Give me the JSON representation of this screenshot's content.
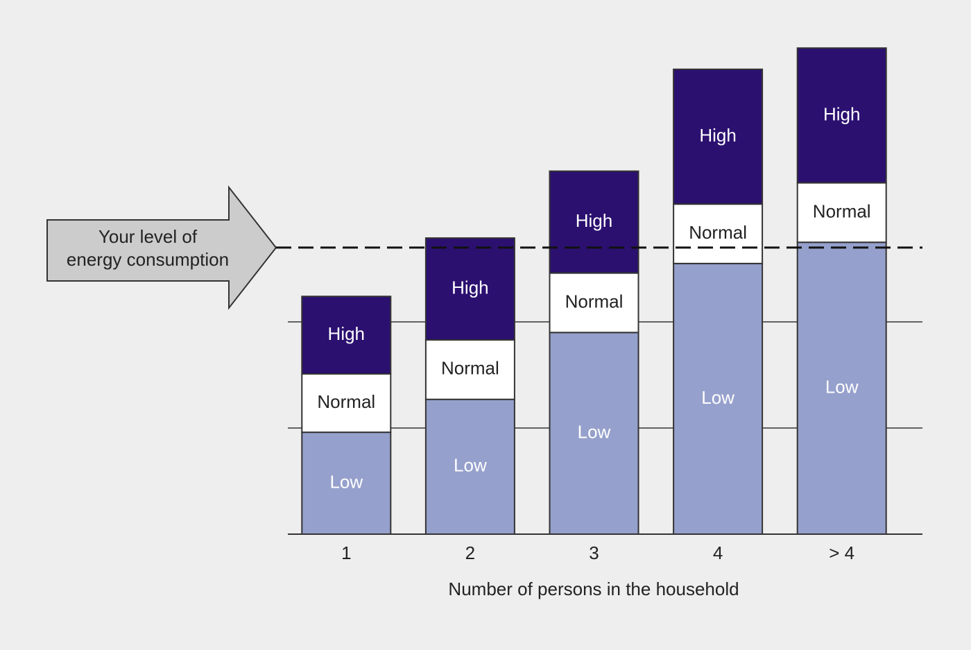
{
  "chart_data": {
    "type": "stacked_bar",
    "categories": [
      "1",
      "2",
      "3",
      "4",
      "> 4"
    ],
    "series": [
      {
        "name": "Low",
        "color": "#96a0cc",
        "label_color": "#ffffff",
        "values": [
          0.96,
          1.27,
          1.9,
          2.55,
          2.75
        ]
      },
      {
        "name": "Normal",
        "color": "#ffffff",
        "label_color": "#222222",
        "values": [
          0.55,
          0.56,
          0.56,
          0.56,
          0.56
        ]
      },
      {
        "name": "High",
        "color": "#2b1070",
        "label_color": "#ffffff",
        "values": [
          0.73,
          0.96,
          0.96,
          1.27,
          1.27
        ]
      }
    ],
    "x_label": "Number of persons in the household",
    "ylim": [
      0,
      4.6
    ],
    "yticks": [
      1,
      2
    ],
    "grid": true,
    "annotation": {
      "lines": [
        "Your level of",
        "energy consumption"
      ],
      "value": 2.7
    }
  }
}
